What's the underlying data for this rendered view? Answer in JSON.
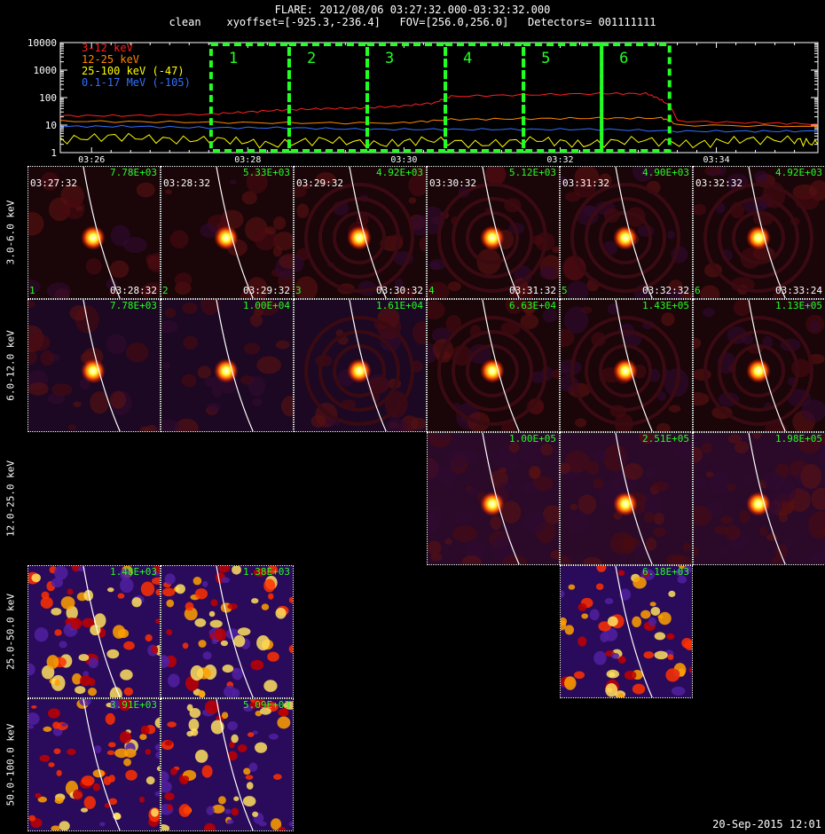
{
  "header": {
    "title": "FLARE: 2012/08/06 03:27:32.000-03:32:32.000",
    "line2": "clean    xyoffset=[-925.3,-236.4]   FOV=[256.0,256.0]   Detectors= 001111111"
  },
  "footer": {
    "date": "20-Sep-2015 12:01"
  },
  "colors": {
    "ch1": "#ff2020",
    "ch2": "#ff8800",
    "ch3": "#ffff00",
    "ch4": "#3070ff",
    "box": "#22ff22"
  },
  "chart_data": {
    "type": "line",
    "title": "FLARE: 2012/08/06 03:27:32.000-03:32:32.000",
    "ylog": true,
    "ylim": [
      1,
      10000
    ],
    "yticks": [
      "1",
      "10",
      "100",
      "1000",
      "10000"
    ],
    "xlim_minutes": [
      25.6,
      35.3
    ],
    "xticks": [
      {
        "t": 26,
        "label": "03:26"
      },
      {
        "t": 28,
        "label": "03:28"
      },
      {
        "t": 30,
        "label": "03:30"
      },
      {
        "t": 32,
        "label": "03:32"
      },
      {
        "t": 34,
        "label": "03:34"
      }
    ],
    "legend": [
      "3-12 keV",
      "12-25 keV",
      "25-100 keV (-47)",
      "0.1-17 MeV (-105)"
    ],
    "intervals": [
      {
        "label": "1",
        "start": 27.53,
        "end": 28.53
      },
      {
        "label": "2",
        "start": 28.53,
        "end": 29.53
      },
      {
        "label": "3",
        "start": 29.53,
        "end": 30.53
      },
      {
        "label": "4",
        "start": 30.53,
        "end": 31.53
      },
      {
        "label": "5",
        "start": 31.53,
        "end": 32.53
      },
      {
        "label": "6",
        "start": 32.53,
        "end": 33.4
      }
    ],
    "series": [
      {
        "name": "3-12 keV",
        "color": "#ff2020",
        "x": [
          25.6,
          26.5,
          27.5,
          28.0,
          28.5,
          29.0,
          29.5,
          30.0,
          30.4,
          30.6,
          31.5,
          32.5,
          33.1,
          33.3,
          33.5,
          34.5,
          35.3
        ],
        "y": [
          22,
          22,
          25,
          30,
          36,
          40,
          42,
          50,
          65,
          110,
          125,
          140,
          140,
          80,
          14,
          12,
          11
        ]
      },
      {
        "name": "12-25 keV",
        "color": "#ff8800",
        "x": [
          25.6,
          27.0,
          28.5,
          30.0,
          30.6,
          31.5,
          32.5,
          33.3,
          33.5,
          35.3
        ],
        "y": [
          14,
          13,
          12,
          12,
          16,
          17,
          18,
          18,
          10,
          9
        ]
      },
      {
        "name": "25-100 keV (-47)",
        "color": "#ffff00",
        "x": [
          25.6,
          26.3,
          27.0,
          27.7,
          28.3,
          29.0,
          29.7,
          30.3,
          31.0,
          31.7,
          32.3,
          33.0,
          33.7,
          34.3,
          35.0,
          35.3
        ],
        "y": [
          3,
          4,
          3,
          3,
          2,
          3,
          2,
          3,
          2,
          3,
          2,
          3,
          2,
          3,
          3,
          2
        ]
      },
      {
        "name": "0.1-17 MeV (-105)",
        "color": "#3070ff",
        "x": [
          25.6,
          26.5,
          27.5,
          28.5,
          29.5,
          30.5,
          31.5,
          32.5,
          33.5,
          34.5,
          35.3
        ],
        "y": [
          9,
          9,
          8,
          8,
          7,
          7,
          7,
          7,
          6,
          6,
          6
        ]
      }
    ]
  },
  "panels": {
    "rows": [
      "3.0-6.0 keV",
      "6.0-12.0 keV",
      "12.0-25.0 keV",
      "25.0-50.0 keV",
      "50.0-100.0 keV"
    ],
    "start_times": [
      "03:27:32",
      "03:28:32",
      "03:29:32",
      "03:30:32",
      "03:31:32",
      "03:32:32"
    ],
    "end_times": [
      "03:28:32",
      "03:29:32",
      "03:30:32",
      "03:31:32",
      "03:32:32",
      "03:33:24"
    ],
    "indices": [
      "1",
      "2",
      "3",
      "4",
      "5",
      "6"
    ],
    "cells": [
      {
        "row": 0,
        "col": 0,
        "max": "7.78E+03"
      },
      {
        "row": 0,
        "col": 1,
        "max": "5.33E+03"
      },
      {
        "row": 0,
        "col": 2,
        "max": "4.92E+03"
      },
      {
        "row": 0,
        "col": 3,
        "max": "5.12E+03"
      },
      {
        "row": 0,
        "col": 4,
        "max": "4.90E+03"
      },
      {
        "row": 0,
        "col": 5,
        "max": "4.92E+03"
      },
      {
        "row": 1,
        "col": 0,
        "max": "7.78E+03"
      },
      {
        "row": 1,
        "col": 1,
        "max": "1.00E+04"
      },
      {
        "row": 1,
        "col": 2,
        "max": "1.61E+04"
      },
      {
        "row": 1,
        "col": 3,
        "max": "6.63E+04"
      },
      {
        "row": 1,
        "col": 4,
        "max": "1.43E+05"
      },
      {
        "row": 1,
        "col": 5,
        "max": "1.13E+05"
      },
      {
        "row": 2,
        "col": 3,
        "max": "1.00E+05"
      },
      {
        "row": 2,
        "col": 4,
        "max": "2.51E+05"
      },
      {
        "row": 2,
        "col": 5,
        "max": "1.98E+05"
      },
      {
        "row": 3,
        "col": 0,
        "max": "1.48E+03"
      },
      {
        "row": 3,
        "col": 1,
        "max": "1.38E+03"
      },
      {
        "row": 3,
        "col": 4,
        "max": "6.18E+03"
      },
      {
        "row": 4,
        "col": 0,
        "max": "3.91E+03"
      },
      {
        "row": 4,
        "col": 1,
        "max": "5.09E+03"
      }
    ]
  }
}
